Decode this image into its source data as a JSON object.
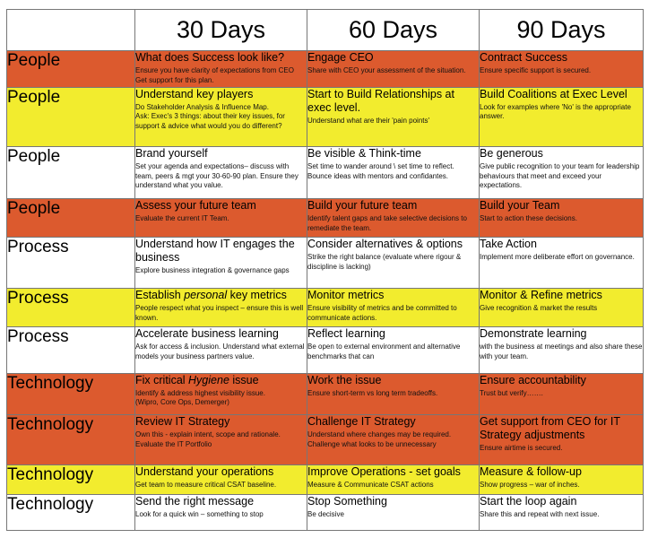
{
  "headers": [
    "30 Days",
    "60 Days",
    "90 Days"
  ],
  "rows": [
    {
      "category": "People",
      "color": "orange",
      "cells": [
        {
          "title": "What does Success look like?",
          "desc": "Ensure you have clarity of expectations from CEO\nGet support for this plan."
        },
        {
          "title": "Engage CEO",
          "desc": "Share with CEO your assessment of the situation."
        },
        {
          "title": "Contract Success",
          "desc": "Ensure specific support is secured."
        }
      ]
    },
    {
      "category": "People",
      "color": "yellow",
      "cells": [
        {
          "title": "Understand key players",
          "desc": "Do Stakeholder Analysis & Influence Map.\nAsk: Exec's 3 things: about their key issues, for support & advice what would you do different?"
        },
        {
          "title": "Start to Build Relationships at exec level.",
          "desc": "Understand what are their 'pain points'"
        },
        {
          "title": "Build Coalitions at Exec Level",
          "desc": "Look for examples where 'No' is the appropriate answer."
        }
      ]
    },
    {
      "category": "People",
      "color": "white",
      "cells": [
        {
          "title": "Brand yourself",
          "desc": "Set your agenda and expectations– discuss with team, peers & mgt your 30-60-90 plan. Ensure they understand what you value."
        },
        {
          "title": "Be visible & Think-time",
          "desc": "Set time to wander around \\ set time to reflect.\nBounce ideas with mentors and confidantes."
        },
        {
          "title": "Be generous",
          "desc": "Give public recognition to your team for leadership behaviours that meet and exceed your expectations."
        }
      ]
    },
    {
      "category": "People",
      "color": "orange",
      "cells": [
        {
          "title": "Assess your future team",
          "desc": "Evaluate the current IT Team."
        },
        {
          "title": "Build your future team",
          "desc": "Identify talent gaps and take selective decisions to remediate the team."
        },
        {
          "title": "Build your Team",
          "desc": "Start to action these decisions."
        }
      ]
    },
    {
      "category": "Process",
      "color": "white",
      "cells": [
        {
          "title": "Understand how IT engages the business",
          "desc": "Explore business integration & governance gaps"
        },
        {
          "title": "Consider alternatives & options",
          "desc": "Strike the right balance (evaluate where rigour & discipline is lacking)"
        },
        {
          "title": "Take Action",
          "desc": "Implement more deliberate effort on governance."
        }
      ]
    },
    {
      "category": "Process",
      "color": "yellow",
      "cells": [
        {
          "title_pre": "Establish ",
          "title_em": "personal",
          "title_post": " key metrics",
          "desc": "People respect what you inspect – ensure this is well known."
        },
        {
          "title": "Monitor metrics",
          "desc": "Ensure visibility of metrics and be committed to communicate actions."
        },
        {
          "title": "Monitor & Refine metrics",
          "desc": "Give recognition & market the results"
        }
      ]
    },
    {
      "category": "Process",
      "color": "white",
      "cells": [
        {
          "title": "Accelerate business learning",
          "desc": "Ask for access & inclusion. Understand what external models your business partners value."
        },
        {
          "title": "Reflect learning",
          "desc": "Be open to external environment and alternative benchmarks that can"
        },
        {
          "title": "Demonstrate learning",
          "desc": "with the business at meetings and also share these with your team."
        }
      ]
    },
    {
      "category": "Technology",
      "color": "orange",
      "cells": [
        {
          "title_pre": "Fix critical ",
          "title_em": "Hygiene",
          "title_post": " issue",
          "desc": "Identify & address highest visibility issue.\n(Wipro, Core Ops, Demerger)"
        },
        {
          "title": "Work the issue",
          "desc": "Ensure short-term vs long term tradeoffs."
        },
        {
          "title": "Ensure accountability",
          "desc": "Trust but verify……."
        }
      ]
    },
    {
      "category": "Technology",
      "color": "orange",
      "cells": [
        {
          "title": "Review IT Strategy",
          "desc": "Own this - explain intent, scope and rationale.\nEvaluate the IT Portfolio"
        },
        {
          "title": "Challenge IT Strategy",
          "desc": "Understand where changes may be required.\nChallenge what looks to be unnecessary"
        },
        {
          "title": "Get support from CEO for IT Strategy adjustments",
          "desc": "Ensure airtime is secured."
        }
      ]
    },
    {
      "category": "Technology",
      "color": "yellow",
      "cells": [
        {
          "title": "Understand your operations",
          "desc": "Get team to measure critical CSAT baseline."
        },
        {
          "title": "Improve Operations - set goals",
          "desc": "Measure & Communicate CSAT actions"
        },
        {
          "title": "Measure & follow-up",
          "desc": "Show progress – war of inches."
        }
      ]
    },
    {
      "category": "Technology",
      "color": "white",
      "cells": [
        {
          "title": "Send the right message",
          "desc": "Look for a quick win – something to stop"
        },
        {
          "title": "Stop Something",
          "desc": "Be decisive"
        },
        {
          "title": "Start the loop again",
          "desc": "Share this and repeat with next issue."
        }
      ]
    }
  ]
}
